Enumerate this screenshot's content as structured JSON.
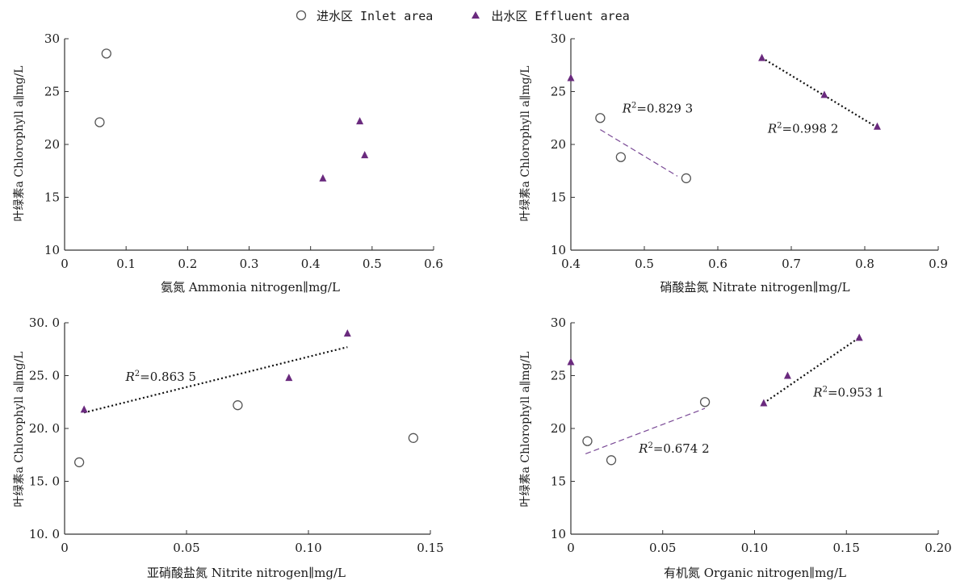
{
  "legend": {
    "inlet_label": "进水区 Inlet area",
    "effluent_label": "出水区 Effluent area"
  },
  "colors": {
    "effluent": "#6a2a7e",
    "inlet_marker": "#555555",
    "inlet_fit": "#7a4a96",
    "axis": "#333333"
  },
  "chart_data": [
    {
      "type": "scatter",
      "xlabel": "氨氮 Ammonia nitrogen∥mg/L",
      "ylabel": "叶绿素a Chlorophyll a∥mg/L",
      "xlim": [
        0,
        0.6
      ],
      "ylim": [
        10,
        30
      ],
      "x_ticks": [
        0,
        0.1,
        0.2,
        0.3,
        0.4,
        0.5,
        0.6
      ],
      "x_tick_labels": [
        "0",
        "0.1",
        "0.2",
        "0.3",
        "0.4",
        "0.5",
        "0.6"
      ],
      "y_ticks": [
        10,
        15,
        20,
        25,
        30
      ],
      "y_tick_labels": [
        "10",
        "15",
        "20",
        "25",
        "30"
      ],
      "series": [
        {
          "name": "进水区 Inlet area",
          "marker": "circle",
          "x": [
            0.057,
            0.068
          ],
          "y": [
            22.1,
            28.6
          ]
        },
        {
          "name": "出水区 Effluent area",
          "marker": "triangle",
          "x": [
            0.42,
            0.48,
            0.488
          ],
          "y": [
            16.8,
            22.2,
            19.0
          ]
        }
      ],
      "fits": []
    },
    {
      "type": "scatter",
      "xlabel": "硝酸盐氮 Nitrate nitrogen∥mg/L",
      "ylabel": "叶绿素a Chlorophyll a∥mg/L",
      "xlim": [
        0.4,
        0.9
      ],
      "ylim": [
        10,
        30
      ],
      "x_ticks": [
        0.4,
        0.5,
        0.6,
        0.7,
        0.8,
        0.9
      ],
      "x_tick_labels": [
        "0.4",
        "0.5",
        "0.6",
        "0.7",
        "0.8",
        "0.9"
      ],
      "y_ticks": [
        10,
        15,
        20,
        25,
        30
      ],
      "y_tick_labels": [
        "10",
        "15",
        "20",
        "25",
        "30"
      ],
      "series": [
        {
          "name": "进水区 Inlet area",
          "marker": "circle",
          "x": [
            0.44,
            0.468,
            0.557
          ],
          "y": [
            22.5,
            18.8,
            16.8
          ]
        },
        {
          "name": "出水区 Effluent area",
          "marker": "triangle",
          "x": [
            0.4,
            0.66,
            0.745,
            0.817
          ],
          "y": [
            26.3,
            28.2,
            24.7,
            21.7
          ]
        }
      ],
      "fits": [
        {
          "series": "inlet",
          "style": "dashed",
          "x": [
            0.44,
            0.545
          ],
          "y": [
            21.4,
            17.0
          ],
          "label": "0.829 3",
          "label_x": 0.47,
          "label_y": 23.0
        },
        {
          "series": "effluent",
          "style": "dotted",
          "x": [
            0.66,
            0.817
          ],
          "y": [
            28.2,
            21.6
          ],
          "label": "0.998 2",
          "label_x": 0.668,
          "label_y": 21.1
        }
      ]
    },
    {
      "type": "scatter",
      "xlabel": "亚硝酸盐氮 Nitrite nitrogen∥mg/L",
      "ylabel": "叶绿素a Chlorophyll a∥mg/L",
      "xlim": [
        0,
        0.15
      ],
      "ylim": [
        10,
        30
      ],
      "x_ticks": [
        0,
        0.05,
        0.1,
        0.15
      ],
      "x_tick_labels": [
        "0",
        "0.05",
        "0.10",
        "0.15"
      ],
      "y_ticks": [
        10,
        15,
        20,
        25,
        30
      ],
      "y_tick_labels": [
        "10. 0",
        "15. 0",
        "20. 0",
        "25. 0",
        "30. 0"
      ],
      "series": [
        {
          "name": "进水区 Inlet area",
          "marker": "circle",
          "x": [
            0.006,
            0.071,
            0.143
          ],
          "y": [
            16.8,
            22.2,
            19.1
          ]
        },
        {
          "name": "出水区 Effluent area",
          "marker": "triangle",
          "x": [
            0.008,
            0.092,
            0.116
          ],
          "y": [
            21.8,
            24.8,
            29.0
          ]
        }
      ],
      "fits": [
        {
          "series": "effluent",
          "style": "dotted",
          "x": [
            0.008,
            0.116
          ],
          "y": [
            21.5,
            27.7
          ],
          "label": "0.863 5",
          "label_x": 0.025,
          "label_y": 24.5
        }
      ]
    },
    {
      "type": "scatter",
      "xlabel": "有机氮 Organic nitrogen∥mg/L",
      "ylabel": "叶绿素a Chlorophyll a∥mg/L",
      "xlim": [
        0,
        0.2
      ],
      "ylim": [
        10,
        30
      ],
      "x_ticks": [
        0,
        0.05,
        0.1,
        0.15,
        0.2
      ],
      "x_tick_labels": [
        "0",
        "0.05",
        "0.10",
        "0.15",
        "0.20"
      ],
      "y_ticks": [
        10,
        15,
        20,
        25,
        30
      ],
      "y_tick_labels": [
        "10",
        "15",
        "20",
        "25",
        "30"
      ],
      "series": [
        {
          "name": "进水区 Inlet area",
          "marker": "circle",
          "x": [
            0.009,
            0.022,
            0.073
          ],
          "y": [
            18.8,
            17.0,
            22.5
          ]
        },
        {
          "name": "出水区 Effluent area",
          "marker": "triangle",
          "x": [
            0,
            0.105,
            0.118,
            0.157
          ],
          "y": [
            26.3,
            22.4,
            25.0,
            28.6
          ]
        }
      ],
      "fits": [
        {
          "series": "inlet",
          "style": "dashed",
          "x": [
            0.008,
            0.073
          ],
          "y": [
            17.6,
            21.9
          ],
          "label": "0.674 2",
          "label_x": 0.037,
          "label_y": 17.7
        },
        {
          "series": "effluent",
          "style": "dotted",
          "x": [
            0.105,
            0.157
          ],
          "y": [
            22.4,
            28.6
          ],
          "label": "0.953 1",
          "label_x": 0.132,
          "label_y": 23.0
        }
      ]
    }
  ]
}
